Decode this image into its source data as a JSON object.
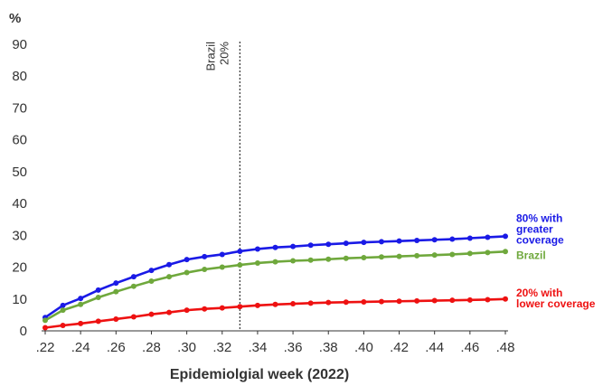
{
  "chart_data": {
    "type": "line",
    "ylabel": "%",
    "xlabel": "Epidemiolgial week (2022)",
    "ylim": [
      0,
      90
    ],
    "yticks": [
      0,
      10,
      20,
      30,
      40,
      50,
      60,
      70,
      80,
      90
    ],
    "xlim": [
      0.22,
      0.48
    ],
    "xticks": [
      ".22",
      ".24",
      ".26",
      ".28",
      ".30",
      ".32",
      ".34",
      ".36",
      ".38",
      ".40",
      ".42",
      ".44",
      ".46",
      ".48"
    ],
    "grid": false,
    "reference_line": {
      "x": 0.33,
      "label_line1": "Brazil",
      "label_line2": "20%"
    },
    "x": [
      0.22,
      0.23,
      0.24,
      0.25,
      0.26,
      0.27,
      0.28,
      0.29,
      0.3,
      0.31,
      0.32,
      0.33,
      0.34,
      0.35,
      0.36,
      0.37,
      0.38,
      0.39,
      0.4,
      0.41,
      0.42,
      0.43,
      0.44,
      0.45,
      0.46,
      0.47,
      0.48
    ],
    "series": [
      {
        "name": "80% with greater coverage",
        "label_lines": [
          "80% with",
          "greater",
          "coverage"
        ],
        "color": "#1a1ae6",
        "values": [
          4.2,
          8.0,
          10.2,
          12.8,
          15.0,
          17.0,
          19.0,
          20.8,
          22.4,
          23.3,
          24.0,
          25.0,
          25.7,
          26.2,
          26.5,
          26.9,
          27.2,
          27.5,
          27.8,
          28.0,
          28.2,
          28.4,
          28.6,
          28.8,
          29.1,
          29.4,
          29.7
        ]
      },
      {
        "name": "Brazil",
        "label_lines": [
          "Brazil"
        ],
        "color": "#6fa83c",
        "values": [
          3.3,
          6.5,
          8.3,
          10.5,
          12.3,
          14.0,
          15.6,
          17.0,
          18.3,
          19.3,
          20.0,
          20.7,
          21.3,
          21.7,
          22.0,
          22.2,
          22.5,
          22.8,
          23.0,
          23.2,
          23.4,
          23.6,
          23.8,
          24.0,
          24.3,
          24.6,
          24.9
        ]
      },
      {
        "name": "20% with lower coverage",
        "label_lines": [
          "20% with",
          "lower coverage"
        ],
        "color": "#ee1111",
        "values": [
          1.0,
          1.7,
          2.3,
          3.0,
          3.7,
          4.4,
          5.2,
          5.8,
          6.5,
          6.9,
          7.2,
          7.6,
          8.0,
          8.3,
          8.5,
          8.7,
          8.9,
          9.0,
          9.1,
          9.2,
          9.3,
          9.4,
          9.5,
          9.6,
          9.7,
          9.8,
          10.0
        ]
      }
    ]
  }
}
